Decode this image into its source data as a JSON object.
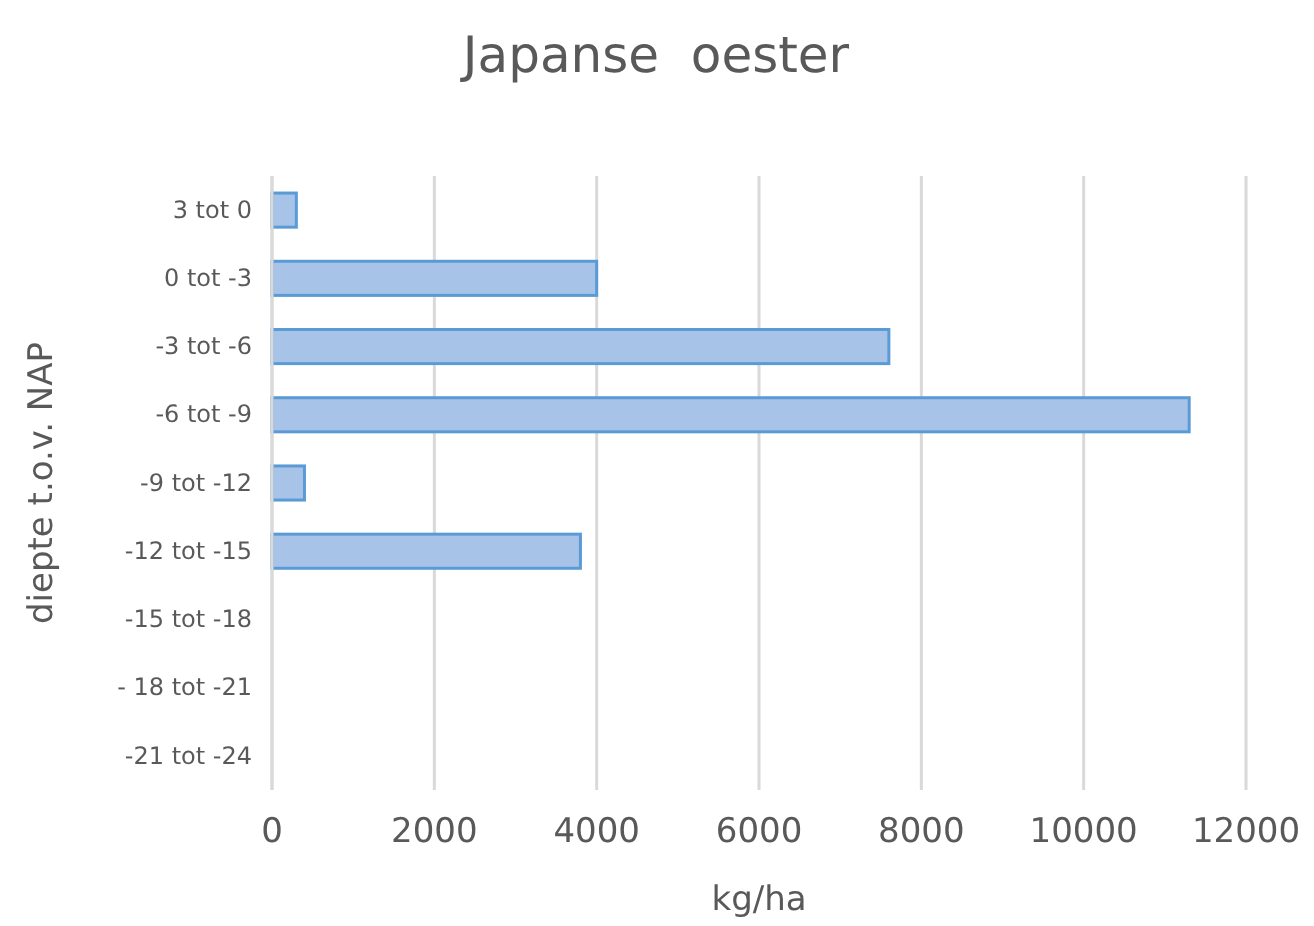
{
  "chart_data": {
    "type": "bar",
    "orientation": "horizontal",
    "title": "Japanse  oester",
    "xlabel": "kg/ha",
    "ylabel": "diepte t.o.v. NAP",
    "categories": [
      "3 tot 0",
      "0 tot -3",
      "-3 tot -6",
      "-6 tot -9",
      "-9 tot -12",
      "-12 tot -15",
      "-15 tot -18",
      "- 18 tot -21",
      "-21 tot -24"
    ],
    "values": [
      300,
      4000,
      7600,
      11300,
      400,
      3800,
      0,
      0,
      0
    ],
    "color": "#a7c3e8",
    "xlim": [
      0,
      12000
    ],
    "xticks": [
      0,
      2000,
      4000,
      6000,
      8000,
      10000,
      12000
    ],
    "grid": "x"
  }
}
